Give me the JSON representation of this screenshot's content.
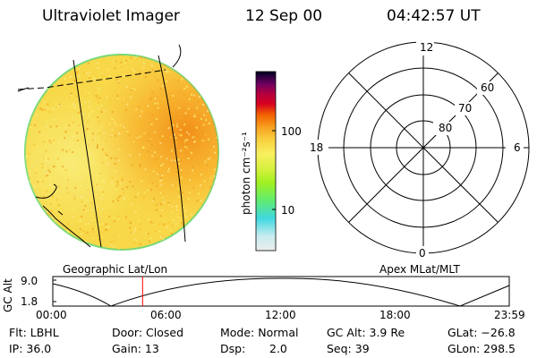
{
  "header": {
    "instrument": "Ultraviolet Imager",
    "date": "12 Sep 00",
    "time": "04:42:57 UT"
  },
  "colorbar": {
    "units": "photon cm⁻²s⁻¹",
    "tick_100": "100",
    "tick_10": "10",
    "scale": "log",
    "colors": [
      "#e8e8e8",
      "#c8ecf0",
      "#40d8e0",
      "#60ec70",
      "#a0f020",
      "#d8f040",
      "#f8f060",
      "#f8d040",
      "#f8a020",
      "#f06000",
      "#d80020",
      "#b00040",
      "#700060",
      "#300040",
      "#000020"
    ]
  },
  "polar_plot": {
    "rings": [
      "80",
      "70",
      "60"
    ],
    "mlt_top": "12",
    "mlt_left": "18",
    "mlt_right": "6",
    "mlt_bottom": "0"
  },
  "orbit": {
    "ylabel": "GC Alt",
    "yticks": [
      "9.0",
      "1.8"
    ],
    "left_title": "Geographic Lat/Lon",
    "right_title": "Apex MLat/MLT",
    "xticks": [
      "00:00",
      "06:00",
      "12:00",
      "18:00",
      "23:59"
    ],
    "current_time_hours": 4.72,
    "marker_color": "#ff0000"
  },
  "footer": {
    "flt": "Flt: LBHL",
    "ip": "IP: 36.0",
    "door": "Door: Closed",
    "gain": "Gain: 13",
    "mode": "Mode: Normal",
    "dsp_label": "Dsp:",
    "dsp_value": "2.0",
    "gc_alt": "GC Alt: 3.9 Re",
    "seq": "Seq: 39",
    "glat": "GLat: −26.8",
    "glon": "GLon: 298.5"
  }
}
